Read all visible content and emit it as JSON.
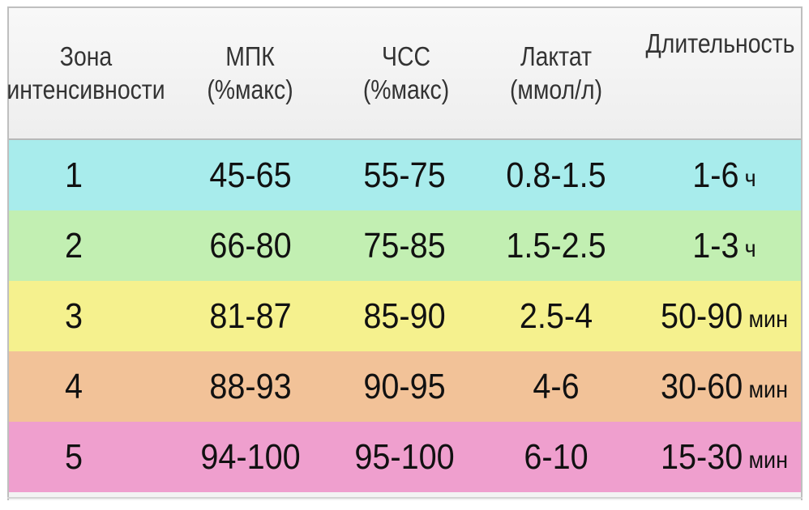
{
  "header": {
    "zone_line1": "Зона",
    "zone_line2": "интенсивности",
    "vo2_line1": "МПК",
    "vo2_line2": "(%макс)",
    "hr_line1": "ЧСС",
    "hr_line2": "(%макс)",
    "lactate_line1": "Лактат",
    "lactate_line2": "(ммол/л)",
    "duration": "Длительность"
  },
  "rows": [
    {
      "zone": "1",
      "vo2": "45-65",
      "hr": "55-75",
      "lactate": "0.8-1.5",
      "duration_value": "1-6",
      "duration_unit": "ч",
      "color": "#a8ecec"
    },
    {
      "zone": "2",
      "vo2": "66-80",
      "hr": "75-85",
      "lactate": "1.5-2.5",
      "duration_value": "1-3",
      "duration_unit": "ч",
      "color": "#c2efb2"
    },
    {
      "zone": "3",
      "vo2": "81-87",
      "hr": "85-90",
      "lactate": "2.5-4",
      "duration_value": "50-90",
      "duration_unit": "мин",
      "color": "#f5f18e"
    },
    {
      "zone": "4",
      "vo2": "88-93",
      "hr": "90-95",
      "lactate": "4-6",
      "duration_value": "30-60",
      "duration_unit": "мин",
      "color": "#f2c298"
    },
    {
      "zone": "5",
      "vo2": "94-100",
      "hr": "95-100",
      "lactate": "6-10",
      "duration_value": "15-30",
      "duration_unit": "мин",
      "color": "#ef9fce"
    }
  ]
}
